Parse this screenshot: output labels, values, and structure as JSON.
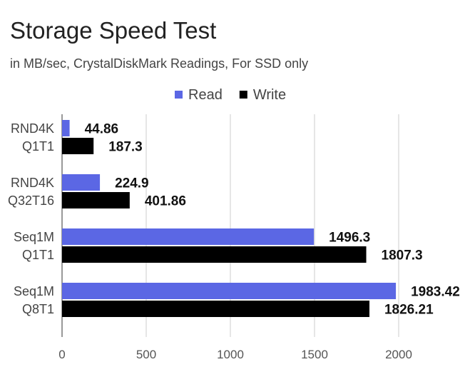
{
  "chart_data": {
    "type": "bar",
    "orientation": "horizontal",
    "title": "Storage Speed Test",
    "subtitle": "in MB/sec, CrystalDiskMark Readings, For SSD only",
    "categories": [
      [
        "RND4K",
        "Q1T1"
      ],
      [
        "RND4K",
        "Q32T16"
      ],
      [
        "Seq1M",
        "Q1T1"
      ],
      [
        "Seq1M",
        "Q8T1"
      ]
    ],
    "series": [
      {
        "name": "Read",
        "values": [
          44.86,
          224.9,
          1496.3,
          1983.42
        ],
        "labels": [
          "44.86",
          "224.9",
          "1496.3",
          "1983.42"
        ],
        "color": "#5b67e4"
      },
      {
        "name": "Write",
        "values": [
          187.3,
          401.86,
          1807.3,
          1826.21
        ],
        "labels": [
          "187.3",
          "401.86",
          "1807.3",
          "1826.21"
        ],
        "color": "#000000"
      }
    ],
    "xlim": [
      0,
      2000
    ],
    "xticks": [
      0,
      500,
      1000,
      1500,
      2000
    ],
    "xtick_labels": [
      "0",
      "500",
      "1000",
      "1500",
      "2000"
    ],
    "grid": "vertical",
    "legend": "top-center",
    "data_labels": true
  }
}
